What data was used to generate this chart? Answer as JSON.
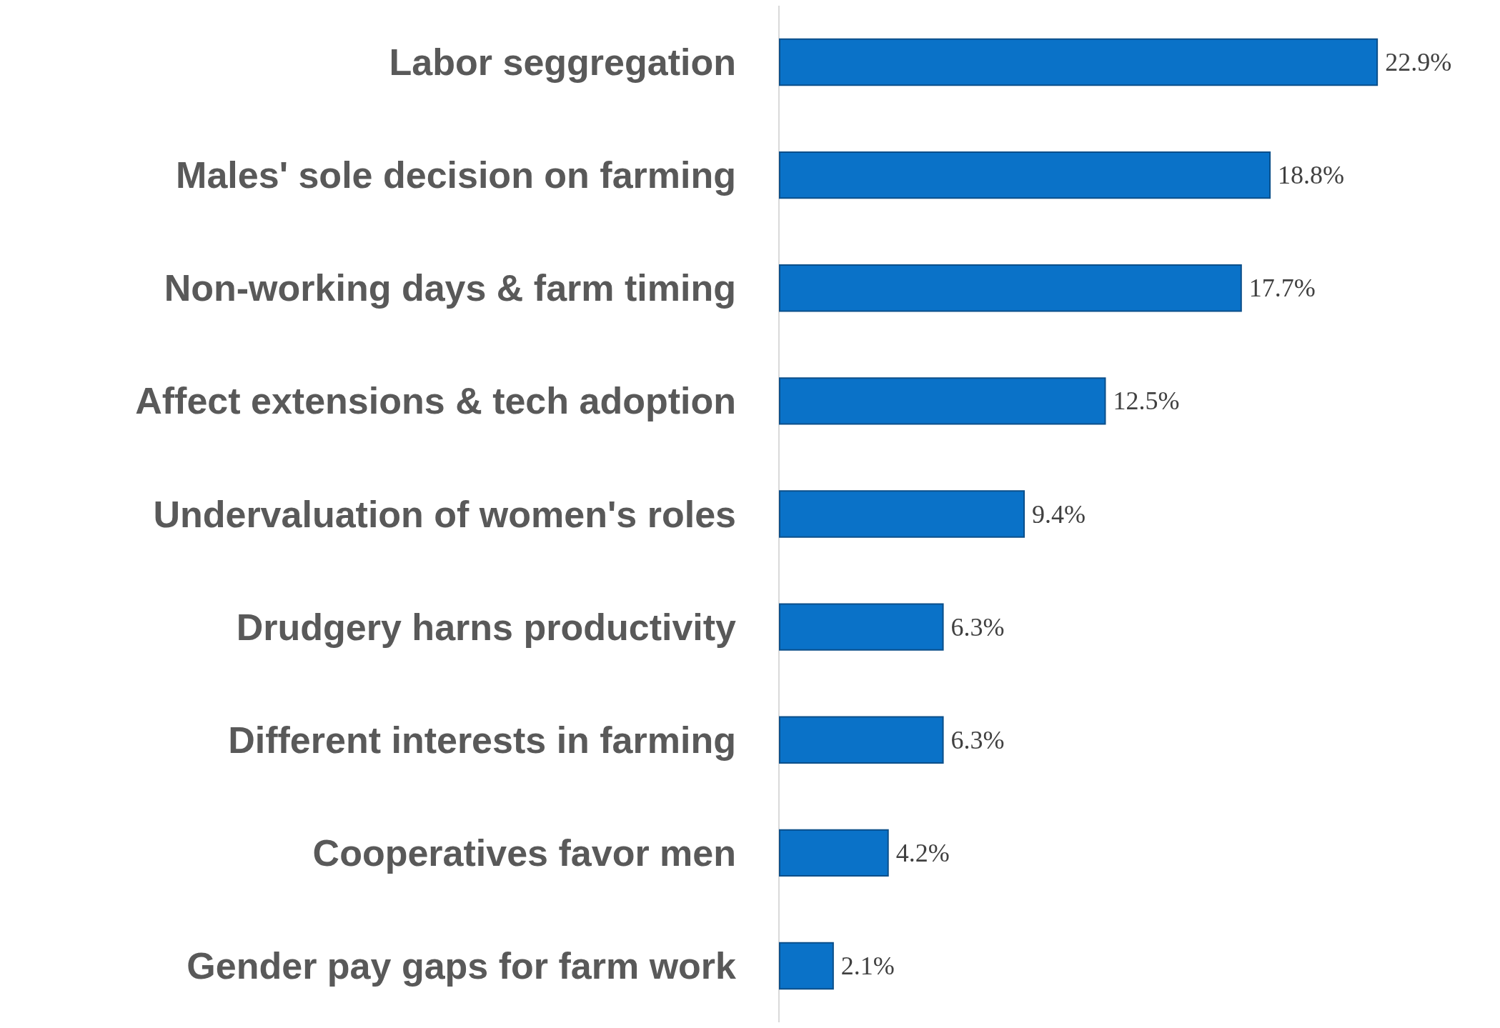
{
  "chart_data": {
    "type": "bar",
    "orientation": "horizontal",
    "categories": [
      "Labor seggregation",
      "Males' sole decision on farming",
      "Non-working days & farm timing",
      "Affect extensions & tech adoption",
      "Undervaluation of women's roles",
      "Drudgery harns productivity",
      "Different interests in farming",
      "Cooperatives favor men",
      "Gender pay gaps for farm work"
    ],
    "values": [
      22.9,
      18.8,
      17.7,
      12.5,
      9.4,
      6.3,
      6.3,
      4.2,
      2.1
    ],
    "value_labels": [
      "22.9%",
      "18.8%",
      "17.7%",
      "12.5%",
      "9.4%",
      "6.3%",
      "6.3%",
      "4.2%",
      "2.1%"
    ],
    "color": "#0a72c8",
    "tick_labels": "y"
  }
}
